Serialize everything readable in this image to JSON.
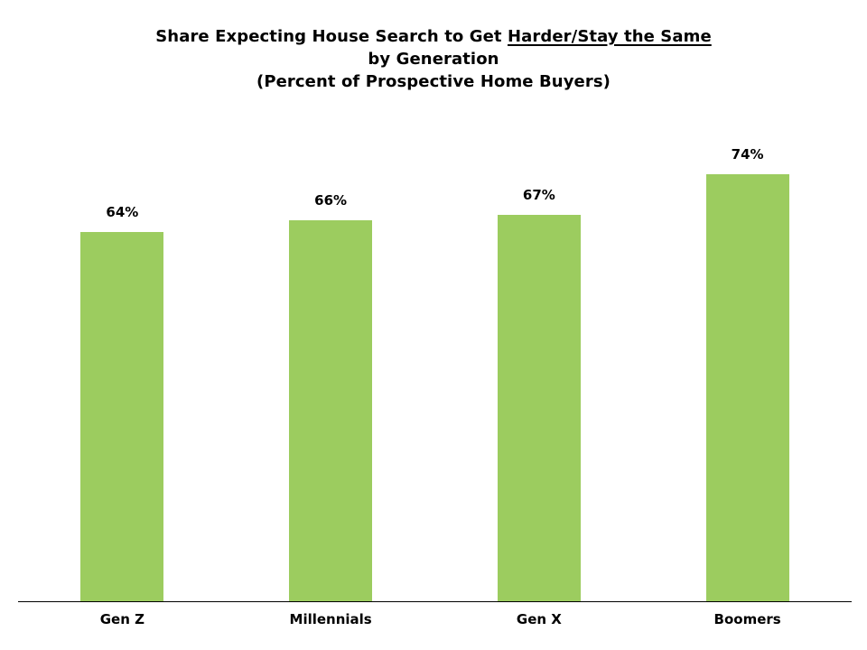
{
  "chart_data": {
    "type": "bar",
    "title": "Share Expecting House Search to Get Harder/Stay the Same by Generation (Percent of Prospective Home Buyers)",
    "title_line1_prefix": "Share Expecting House Search to Get ",
    "title_line1_underlined": "Harder/Stay the Same",
    "title_line2": "by Generation",
    "title_line3": "(Percent of Prospective Home Buyers)",
    "categories": [
      "Gen Z",
      "Millennials",
      "Gen X",
      "Boomers"
    ],
    "values": [
      64,
      66,
      67,
      74
    ],
    "value_labels": [
      "64%",
      "66%",
      "67%",
      "74%"
    ],
    "xlabel": "",
    "ylabel": "",
    "ylim": [
      0,
      100
    ],
    "grid": false,
    "legend": "none",
    "bar_color": "#9CCC5F",
    "axis_color": "#000000",
    "text_color": "#000000",
    "background_color": "#FFFFFF"
  }
}
